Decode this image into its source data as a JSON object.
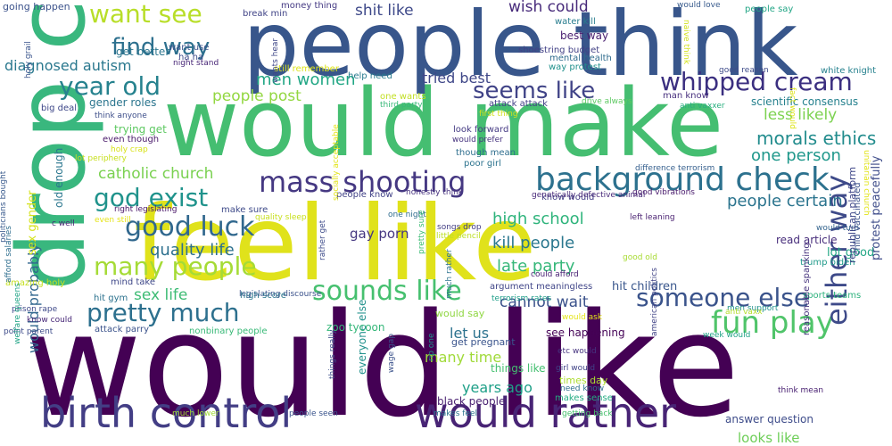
{
  "words": [
    {
      "text": "would like",
      "color": "#440154"
    },
    {
      "text": "feel like",
      "color": "#e0e21b"
    },
    {
      "text": "would make",
      "color": "#45be71"
    },
    {
      "text": "people think",
      "color": "#38568b"
    },
    {
      "text": "drop c",
      "color": "#39b77e"
    },
    {
      "text": "birth control",
      "color": "#433e85"
    },
    {
      "text": "would rather",
      "color": "#482475"
    },
    {
      "text": "background check",
      "color": "#2c718e"
    },
    {
      "text": "mass shooting",
      "color": "#453882"
    },
    {
      "text": "whipped cream",
      "color": "#3b2f80"
    },
    {
      "text": "god exist",
      "color": "#20938c"
    },
    {
      "text": "good luck",
      "color": "#31688e"
    },
    {
      "text": "many people",
      "color": "#a5db36"
    },
    {
      "text": "pretty much",
      "color": "#2d708e"
    },
    {
      "text": "sounds like",
      "color": "#46c06f"
    },
    {
      "text": "someone else",
      "color": "#3a538b"
    },
    {
      "text": "fun play",
      "color": "#50c46a"
    },
    {
      "text": "either way",
      "color": "#3e4a89"
    },
    {
      "text": "year old",
      "color": "#26828e"
    },
    {
      "text": "want see",
      "color": "#b8de29"
    },
    {
      "text": "find way",
      "color": "#2d708e"
    },
    {
      "text": "seems like",
      "color": "#404387"
    },
    {
      "text": "diagnosed autism",
      "color": "#2a788e"
    },
    {
      "text": "men women",
      "color": "#22a785"
    },
    {
      "text": "people post",
      "color": "#93d741"
    },
    {
      "text": "tried best",
      "color": "#3f4788"
    },
    {
      "text": "shit like",
      "color": "#3e4989"
    },
    {
      "text": "wish could",
      "color": "#472a7a"
    },
    {
      "text": "morals ethics",
      "color": "#228c8d"
    },
    {
      "text": "people certain",
      "color": "#2b748e"
    },
    {
      "text": "high school",
      "color": "#2fb47c"
    },
    {
      "text": "kill people",
      "color": "#2a778e"
    },
    {
      "text": "late party",
      "color": "#35b779"
    },
    {
      "text": "quality life",
      "color": "#2d708e"
    },
    {
      "text": "catholic church",
      "color": "#7ad151"
    },
    {
      "text": "sex life",
      "color": "#3dbc74"
    },
    {
      "text": "cannot wait",
      "color": "#3b528b"
    },
    {
      "text": "gay porn",
      "color": "#453781"
    },
    {
      "text": "one person",
      "color": "#1f988b"
    },
    {
      "text": "less likely",
      "color": "#7cd250"
    },
    {
      "text": "would probably",
      "color": "#31678e"
    },
    {
      "text": "let us",
      "color": "#2c728e"
    },
    {
      "text": "many time",
      "color": "#a0da39"
    },
    {
      "text": "years ago",
      "color": "#1fa088"
    },
    {
      "text": "looks like",
      "color": "#6ece58"
    },
    {
      "text": "answer question",
      "color": "#3e4c8a"
    },
    {
      "text": "lot good",
      "color": "#22a785"
    },
    {
      "text": "read article",
      "color": "#472d7b"
    },
    {
      "text": "sex gender",
      "color": "#d5e21a"
    },
    {
      "text": "old enough",
      "color": "#2a768e"
    },
    {
      "text": "black people",
      "color": "#481f70"
    },
    {
      "text": "everyone else",
      "color": "#21918c"
    },
    {
      "text": "see happening",
      "color": "#440256"
    },
    {
      "text": "get pregnant",
      "color": "#3a548c"
    },
    {
      "text": "times day",
      "color": "#addc30"
    },
    {
      "text": "things like",
      "color": "#44bf70"
    },
    {
      "text": "scientific consensus",
      "color": "#26818e"
    },
    {
      "text": "best way",
      "color": "#481d6f"
    },
    {
      "text": "gender roles",
      "color": "#2b758e"
    },
    {
      "text": "trying get",
      "color": "#5ec962"
    },
    {
      "text": "zoo tycoon",
      "color": "#35b779"
    },
    {
      "text": "sports teams",
      "color": "#2db27d"
    },
    {
      "text": "trump biden",
      "color": "#1f9a8a"
    },
    {
      "text": "going happen",
      "color": "#3b528b"
    },
    {
      "text": "money thing",
      "color": "#443983"
    },
    {
      "text": "break min",
      "color": "#414487"
    },
    {
      "text": "water kill",
      "color": "#287d8e"
    },
    {
      "text": "would love",
      "color": "#375a8c"
    },
    {
      "text": "people say",
      "color": "#21a585"
    },
    {
      "text": "shoestring budget",
      "color": "#424186"
    },
    {
      "text": "mental health",
      "color": "#2f6c8e"
    },
    {
      "text": "way protest",
      "color": "#21918c"
    },
    {
      "text": "good reason",
      "color": "#3e4c8a"
    },
    {
      "text": "white knight",
      "color": "#26818e"
    },
    {
      "text": "get better",
      "color": "#2b758e"
    },
    {
      "text": "want use",
      "color": "#3b528b"
    },
    {
      "text": "ha ha",
      "color": "#3d4d8a"
    },
    {
      "text": "night stand",
      "color": "#482677"
    },
    {
      "text": "still remember",
      "color": "#dde318"
    },
    {
      "text": "help need",
      "color": "#297a8e"
    },
    {
      "text": "one wants",
      "color": "#c2df23"
    },
    {
      "text": "third party",
      "color": "#37b878"
    },
    {
      "text": "attack attack",
      "color": "#424086"
    },
    {
      "text": "first thing",
      "color": "#d0e11c"
    },
    {
      "text": "look forward",
      "color": "#443a83"
    },
    {
      "text": "would prefer",
      "color": "#46337f"
    },
    {
      "text": "though mean",
      "color": "#2e6e8e"
    },
    {
      "text": "poor girl",
      "color": "#2c738e"
    },
    {
      "text": "drive always",
      "color": "#5ec962"
    },
    {
      "text": "man know",
      "color": "#472f7d"
    },
    {
      "text": "anti vaxxer",
      "color": "#29af7f"
    },
    {
      "text": "big deal",
      "color": "#3f4889"
    },
    {
      "text": "think anyone",
      "color": "#3d4e8a"
    },
    {
      "text": "holy crap",
      "color": "#d8e219"
    },
    {
      "text": "lot periphery",
      "color": "#c8e020"
    },
    {
      "text": "even though",
      "color": "#481769"
    },
    {
      "text": "difference terrorism",
      "color": "#355f8d"
    },
    {
      "text": "good vibrations",
      "color": "#481a6c"
    },
    {
      "text": "know would",
      "color": "#433e85"
    },
    {
      "text": "honestly think",
      "color": "#46317e"
    },
    {
      "text": "people know",
      "color": "#414287"
    },
    {
      "text": "right legislating",
      "color": "#481467"
    },
    {
      "text": "make sure",
      "color": "#3e4a89"
    },
    {
      "text": "even still",
      "color": "#e5e419"
    },
    {
      "text": "c well",
      "color": "#482374"
    },
    {
      "text": "quality sleep",
      "color": "#c8e020"
    },
    {
      "text": "one night",
      "color": "#2f6c8e"
    },
    {
      "text": "songs drop",
      "color": "#433e85"
    },
    {
      "text": "little pencil",
      "color": "#bddf26"
    },
    {
      "text": "left leaning",
      "color": "#481f70"
    },
    {
      "text": "good old",
      "color": "#a8db34"
    },
    {
      "text": "could afford",
      "color": "#482173"
    },
    {
      "text": "argument meaningless",
      "color": "#404588"
    },
    {
      "text": "hit children",
      "color": "#39568c"
    },
    {
      "text": "terrorism rates",
      "color": "#1f9e89"
    },
    {
      "text": "legislating discourse",
      "color": "#3b528b"
    },
    {
      "text": "mind take",
      "color": "#3f4889"
    },
    {
      "text": "hit gym",
      "color": "#2c728e"
    },
    {
      "text": "high score",
      "color": "#2a768e"
    },
    {
      "text": "amazing holy",
      "color": "#c5e021"
    },
    {
      "text": "prison rape",
      "color": "#3e4989"
    },
    {
      "text": "know could",
      "color": "#482878"
    },
    {
      "text": "attack parry",
      "color": "#3b528b"
    },
    {
      "text": "nonbinary people",
      "color": "#38b977"
    },
    {
      "text": "point parent",
      "color": "#3e4c8a"
    },
    {
      "text": "would say",
      "color": "#90d743"
    },
    {
      "text": "would ask",
      "color": "#e5e419"
    },
    {
      "text": "men support",
      "color": "#21918c"
    },
    {
      "text": "anti vaxx",
      "color": "#b5de2b"
    },
    {
      "text": "week would",
      "color": "#20a386"
    },
    {
      "text": "etc would",
      "color": "#46337f"
    },
    {
      "text": "girl would",
      "color": "#404387"
    },
    {
      "text": "need know",
      "color": "#2e6f8e"
    },
    {
      "text": "makes sense",
      "color": "#25ac82"
    },
    {
      "text": "think mean",
      "color": "#482071"
    },
    {
      "text": "much lower",
      "color": "#a2da37"
    },
    {
      "text": "people seen",
      "color": "#3a548c"
    },
    {
      "text": "makes feel",
      "color": "#2c738e"
    },
    {
      "text": "getting back",
      "color": "#48c16e"
    },
    {
      "text": "welfare queens",
      "color": "#20a486"
    },
    {
      "text": "rip one",
      "color": "#1f958b"
    },
    {
      "text": "wage gap",
      "color": "#3b528b"
    },
    {
      "text": "things really",
      "color": "#3d4e8a"
    },
    {
      "text": "much rather",
      "color": "#2c728e"
    },
    {
      "text": "rather get",
      "color": "#3e4c8a"
    },
    {
      "text": "pretty sure",
      "color": "#3dbc74"
    },
    {
      "text": "socially acceptable",
      "color": "#e2e418"
    },
    {
      "text": "wants hear",
      "color": "#3f4788"
    },
    {
      "text": "holy grail",
      "color": "#3a548c"
    },
    {
      "text": "afford salaries",
      "color": "#2e6e8e"
    },
    {
      "text": "politicians bought",
      "color": "#38598c"
    },
    {
      "text": "naive think",
      "color": "#d2e21b"
    },
    {
      "text": "fact would",
      "color": "#dde318"
    },
    {
      "text": "genetically defective animal",
      "color": "#482979"
    },
    {
      "text": "unitarian church",
      "color": "#e2e418"
    },
    {
      "text": "would turn",
      "color": "#33638d"
    },
    {
      "text": "child vaccinated",
      "color": "#3b528b"
    },
    {
      "text": "protest peacefully",
      "color": "#3e4c8a"
    },
    {
      "text": "republican platform",
      "color": "#3f4788"
    },
    {
      "text": "reasonable spanking",
      "color": "#46327e"
    },
    {
      "text": "american politics",
      "color": "#414487"
    }
  ]
}
